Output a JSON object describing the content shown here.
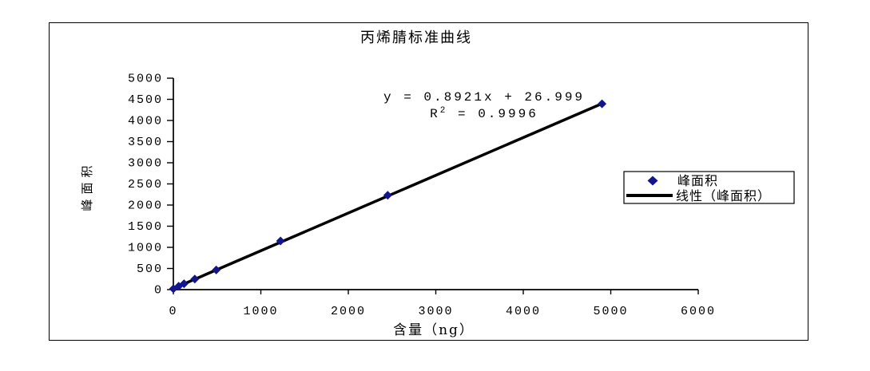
{
  "chart": {
    "title": "丙烯腈标准曲线",
    "annotation": {
      "equation": "y = 0.8921x + 26.999",
      "r2_base": "R",
      "r2_sup": "2",
      "r2_rest": " = 0.9996"
    },
    "x_axis": {
      "label": "含量（ng）",
      "ticks": [
        0,
        1000,
        2000,
        3000,
        4000,
        5000,
        6000
      ]
    },
    "y_axis": {
      "label": "峰面积",
      "ticks": [
        0,
        500,
        1000,
        1500,
        2000,
        2500,
        3000,
        3500,
        4000,
        4500,
        5000
      ]
    },
    "legend": {
      "items": [
        {
          "label": "峰面积",
          "marker": "diamond"
        },
        {
          "label": "线性（峰面积）",
          "marker": "line"
        }
      ]
    },
    "colors": {
      "marker": "#14148c",
      "line": "#000000",
      "axis": "#000000",
      "background": "#ffffff"
    }
  },
  "chart_data": {
    "type": "scatter",
    "title": "丙烯腈标准曲线",
    "xlabel": "含量（ng）",
    "ylabel": "峰面积",
    "xlim": [
      0,
      6000
    ],
    "ylim": [
      0,
      5000
    ],
    "x_tick_interval": 1000,
    "y_tick_interval": 500,
    "grid": false,
    "legend_position": "right",
    "series": [
      {
        "name": "峰面积",
        "type": "scatter",
        "marker": "diamond",
        "color": "#14148c",
        "points": [
          {
            "x": 0,
            "y": 20
          },
          {
            "x": 61,
            "y": 80
          },
          {
            "x": 122,
            "y": 140
          },
          {
            "x": 245,
            "y": 250
          },
          {
            "x": 490,
            "y": 465
          },
          {
            "x": 1225,
            "y": 1150
          },
          {
            "x": 2450,
            "y": 2230
          },
          {
            "x": 4900,
            "y": 4395
          }
        ]
      },
      {
        "name": "线性（峰面积）",
        "type": "trendline",
        "color": "#000000",
        "slope": 0.8921,
        "intercept": 26.999,
        "r_squared": 0.9996,
        "x_range": [
          0,
          4900
        ],
        "equation_text": "y = 0.8921x + 26.999",
        "r2_text": "R² = 0.9996"
      }
    ]
  }
}
